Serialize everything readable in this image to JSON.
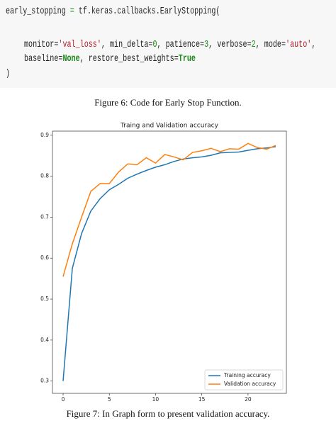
{
  "code": {
    "lines": [
      [
        "early_stopping ",
        "=",
        " tf.keras.callbacks.EarlyStopping("
      ],
      [
        "monitor=",
        "'val_loss'",
        ", min_delta=",
        "0",
        ", patience=",
        "3",
        ", verbose=",
        "2",
        ", mode=",
        "'auto'",
        ","
      ],
      [
        "baseline=",
        "None",
        ", restore_best_weights=",
        "True"
      ],
      [
        ")"
      ]
    ]
  },
  "figure6_caption": "Figure 6: Code for Early Stop Function.",
  "figure7_caption": "Figure 7: In Graph form to present validation accuracy.",
  "chart_data": {
    "type": "line",
    "title": "Traing and Validation accuracy",
    "x": [
      0,
      1,
      2,
      3,
      4,
      5,
      6,
      7,
      8,
      9,
      10,
      11,
      12,
      13,
      14,
      15,
      16,
      17,
      18,
      19,
      20,
      21,
      22,
      23
    ],
    "series": [
      {
        "name": "Training accuracy",
        "color": "#1f77b4",
        "values": [
          0.3,
          0.575,
          0.66,
          0.715,
          0.745,
          0.767,
          0.78,
          0.795,
          0.805,
          0.814,
          0.822,
          0.828,
          0.836,
          0.842,
          0.845,
          0.847,
          0.851,
          0.857,
          0.858,
          0.859,
          0.863,
          0.867,
          0.869,
          0.872
        ]
      },
      {
        "name": "Validation accuracy",
        "color": "#ff7f0e",
        "values": [
          0.555,
          0.635,
          0.7,
          0.763,
          0.782,
          0.782,
          0.81,
          0.83,
          0.828,
          0.845,
          0.832,
          0.853,
          0.847,
          0.84,
          0.858,
          0.862,
          0.868,
          0.86,
          0.867,
          0.866,
          0.88,
          0.87,
          0.866,
          0.875
        ]
      }
    ],
    "xlim": [
      -1.15,
      24.15
    ],
    "ylim": [
      0.27,
      0.91
    ],
    "xticks": [
      0,
      5,
      10,
      15,
      20
    ],
    "yticks": [
      0.3,
      0.4,
      0.5,
      0.6,
      0.7,
      0.8,
      0.9
    ],
    "legend": "lower right"
  }
}
